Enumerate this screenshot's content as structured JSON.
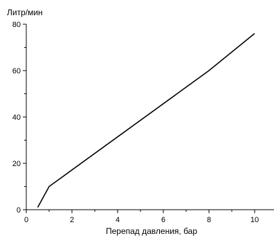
{
  "chart_data": {
    "type": "line",
    "title": "",
    "xlabel": "Перепад давления, бар",
    "ylabel": "Литр/мин",
    "xlim": [
      0,
      11
    ],
    "ylim": [
      0,
      80
    ],
    "x_ticks": [
      0,
      2,
      4,
      6,
      8,
      10
    ],
    "x_tick_labels": [
      "0",
      "2",
      "4",
      "6",
      "8",
      "10"
    ],
    "y_ticks": [
      0,
      20,
      40,
      60,
      80
    ],
    "y_tick_labels": [
      "0",
      "20",
      "40",
      "60",
      "80"
    ],
    "grid": false,
    "legend": "none",
    "line_color": "#000000",
    "series": [
      {
        "x": [
          0.5,
          1.0,
          8.0,
          10.0
        ],
        "y": [
          1,
          10,
          60,
          76
        ]
      }
    ]
  }
}
